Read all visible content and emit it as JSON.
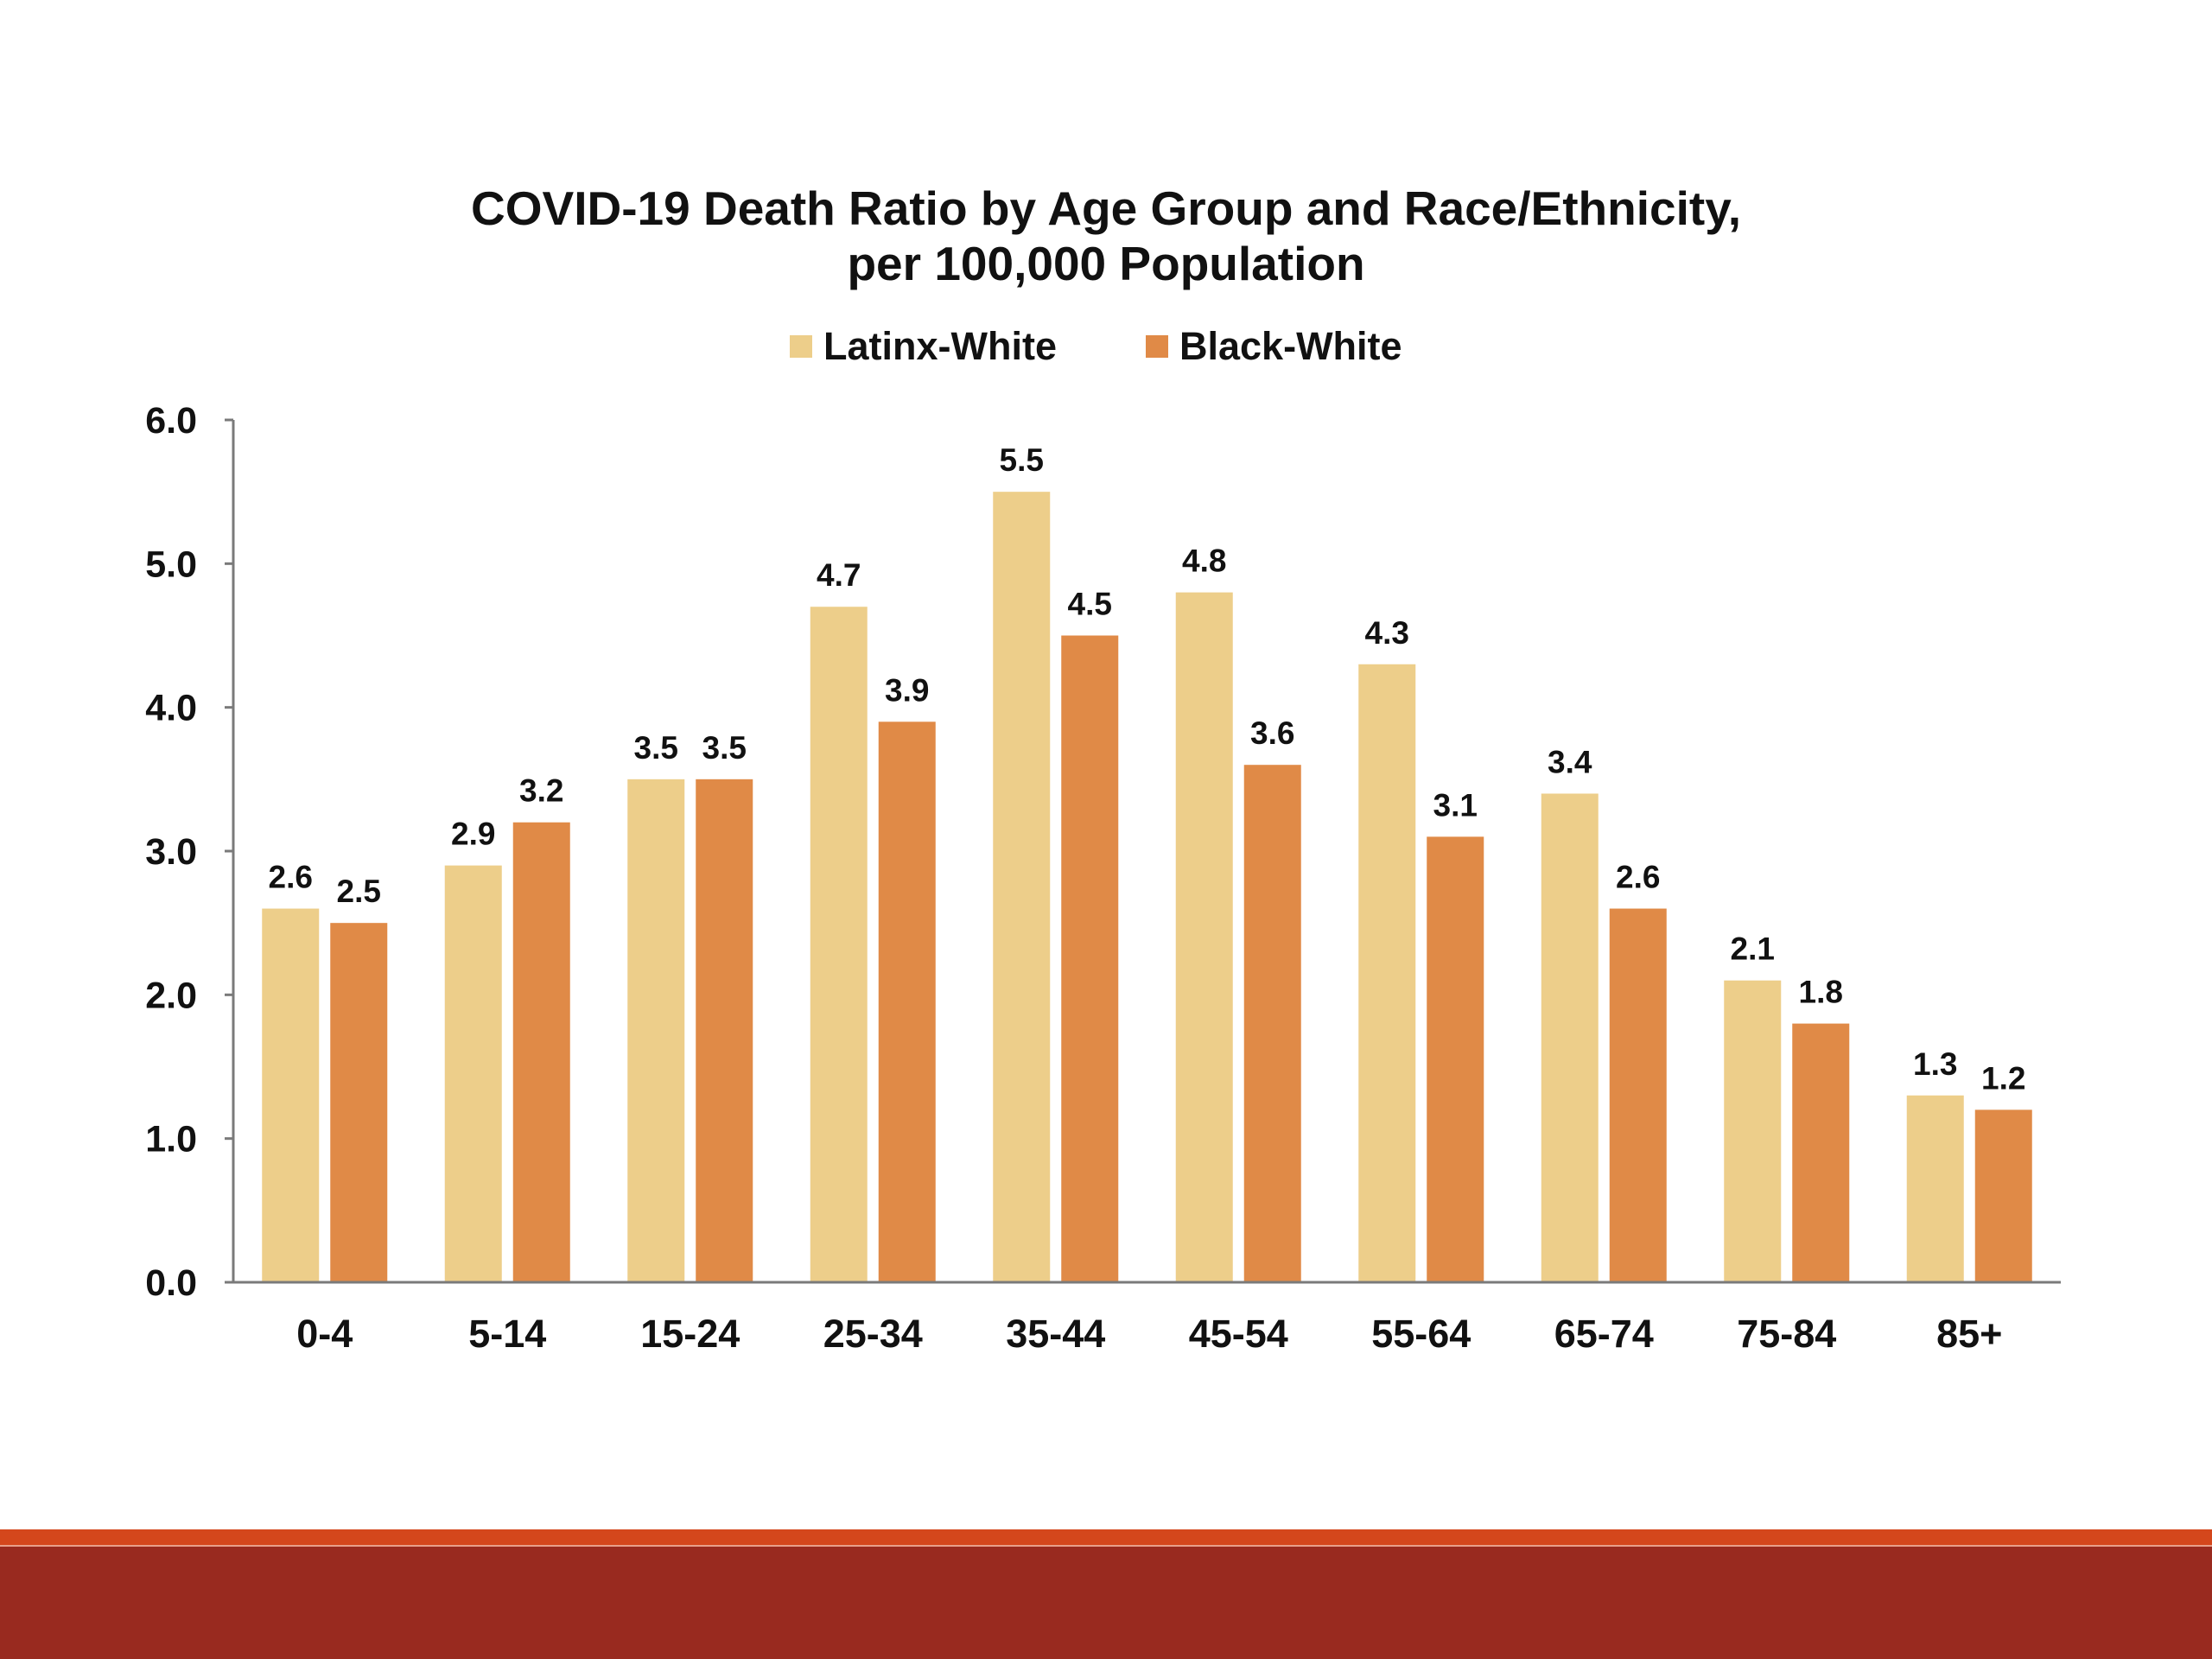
{
  "chart_data": {
    "type": "bar",
    "title": "COVID-19 Death Ratio by Age Group and Race/Ethnicity,",
    "subtitle": "per 100,000 Population",
    "categories": [
      "0-4",
      "5-14",
      "15-24",
      "25-34",
      "35-44",
      "45-54",
      "55-64",
      "65-74",
      "75-84",
      "85+"
    ],
    "series": [
      {
        "name": "Latinx-White",
        "color": "#edce8a",
        "values": [
          2.6,
          2.9,
          3.5,
          4.7,
          5.5,
          4.8,
          4.3,
          3.4,
          2.1,
          1.3
        ],
        "labels": [
          "2.6",
          "2.9",
          "3.5",
          "4.7",
          "5.5",
          "4.8",
          "4.3",
          "3.4",
          "2.1",
          "1.3"
        ]
      },
      {
        "name": "Black-White",
        "color": "#e08a47",
        "values": [
          2.5,
          3.2,
          3.5,
          3.9,
          4.5,
          3.6,
          3.1,
          2.6,
          1.8,
          1.2
        ],
        "labels": [
          "2.5",
          "3.2",
          "3.5",
          "3.9",
          "4.5",
          "3.6",
          "3.1",
          "2.6",
          "1.8",
          "1.2"
        ]
      }
    ],
    "yticks": [
      "0.0",
      "1.0",
      "2.0",
      "3.0",
      "4.0",
      "5.0",
      "6.0"
    ],
    "ylim": [
      0,
      6
    ],
    "xlabel": "",
    "ylabel": "",
    "legend": "top-center",
    "grid": false
  },
  "footer": {
    "line_color": "#d4471c",
    "band_color": "#992a1f"
  }
}
